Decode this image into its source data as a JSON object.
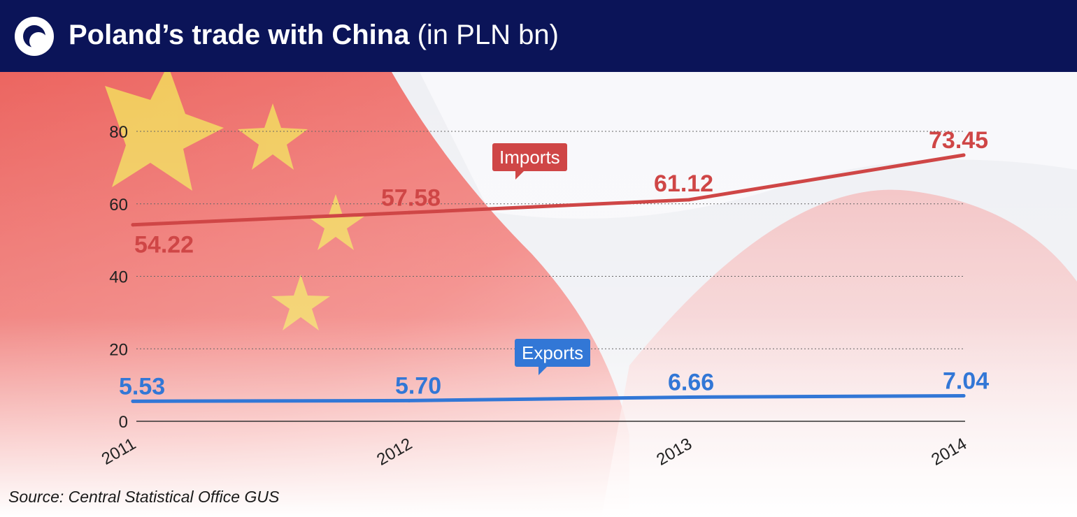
{
  "header": {
    "title": "Poland’s trade with China",
    "unit": "(in PLN bn)",
    "logo_icon": "crescent-logo-icon"
  },
  "source": "Source: Central Statistical Office GUS",
  "colors": {
    "header_bg": "#0b1458",
    "imports": "#cf4646",
    "exports": "#3277d6",
    "flag_red": "#e23a3a",
    "flag_star": "#f0d33a"
  },
  "chart_data": {
    "type": "line",
    "x": [
      "2011",
      "2012",
      "2013",
      "2014"
    ],
    "ylim": [
      0,
      80
    ],
    "yticks": [
      "0",
      "20",
      "40",
      "60",
      "80"
    ],
    "grid": true,
    "series": [
      {
        "name": "Imports",
        "values": [
          54.22,
          57.58,
          61.12,
          73.45
        ],
        "labels": [
          "54.22",
          "57.58",
          "61.12",
          "73.45"
        ]
      },
      {
        "name": "Exports",
        "values": [
          5.53,
          5.7,
          6.66,
          7.04
        ],
        "labels": [
          "5.53",
          "5.70",
          "6.66",
          "7.04"
        ]
      }
    ]
  }
}
